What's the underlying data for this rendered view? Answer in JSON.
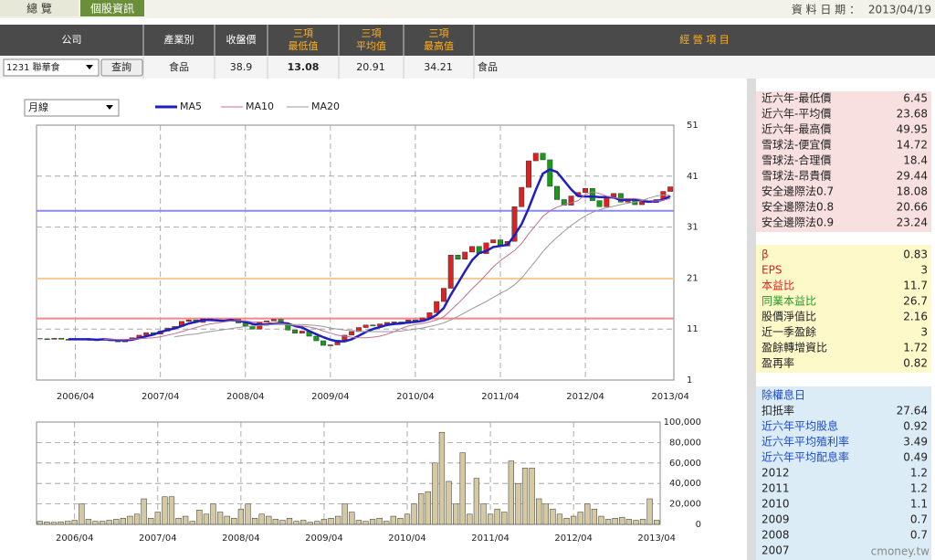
{
  "tabs": [
    "總 覽",
    "個股資訊"
  ],
  "date_label": "資 料 日 期 ：",
  "date": "2013/04/19",
  "table": {
    "header": [
      "公司",
      "產業別",
      "收盤價",
      [
        "三項",
        "最低值"
      ],
      [
        "三項",
        "平均值"
      ],
      [
        "三項",
        "最高值"
      ],
      "經 營 項 目"
    ],
    "row": {
      "company": "1231 聯華食",
      "button": "查詢",
      "industry": "食品",
      "close": 38.9,
      "low": 13.08,
      "avg": 20.91,
      "high": 34.21,
      "business": "食品"
    }
  },
  "period": "月線",
  "chart_data": [
    {
      "type": "candlestick",
      "x": [
        "2005/11",
        "2005/12",
        "2006/01",
        "2006/02",
        "2006/03",
        "2006/04",
        "2006/05",
        "2006/06",
        "2006/07",
        "2006/08",
        "2006/09",
        "2006/10",
        "2006/11",
        "2006/12",
        "2007/01",
        "2007/02",
        "2007/03",
        "2007/04",
        "2007/05",
        "2007/06",
        "2007/07",
        "2007/08",
        "2007/09",
        "2007/10",
        "2007/11",
        "2007/12",
        "2008/01",
        "2008/02",
        "2008/03",
        "2008/04",
        "2008/05",
        "2008/06",
        "2008/07",
        "2008/08",
        "2008/09",
        "2008/10",
        "2008/11",
        "2008/12",
        "2009/01",
        "2009/02",
        "2009/03",
        "2009/04",
        "2009/05",
        "2009/06",
        "2009/07",
        "2009/08",
        "2009/09",
        "2009/10",
        "2009/11",
        "2009/12",
        "2010/01",
        "2010/02",
        "2010/03",
        "2010/04",
        "2010/05",
        "2010/06",
        "2010/07",
        "2010/08",
        "2010/09",
        "2010/10",
        "2010/11",
        "2010/12",
        "2011/01",
        "2011/02",
        "2011/03",
        "2011/04",
        "2011/05",
        "2011/06",
        "2011/07",
        "2011/08",
        "2011/09",
        "2011/10",
        "2011/11",
        "2011/12",
        "2012/01",
        "2012/02",
        "2012/03",
        "2012/04",
        "2012/05",
        "2012/06",
        "2012/07",
        "2012/08",
        "2012/09",
        "2012/10",
        "2012/11",
        "2012/12",
        "2013/01",
        "2013/02",
        "2013/03",
        "2013/04"
      ],
      "close": [
        9.1,
        9.0,
        9.2,
        9.0,
        8.9,
        9.1,
        9.0,
        8.8,
        8.9,
        9.0,
        8.7,
        8.5,
        8.9,
        9.3,
        9.8,
        10.3,
        10.0,
        10.6,
        11.2,
        11.5,
        12.5,
        12.8,
        12.3,
        13.0,
        12.6,
        12.8,
        12.5,
        12.9,
        12.2,
        11.6,
        11.0,
        12.3,
        12.6,
        12.9,
        12.0,
        10.8,
        10.2,
        10.6,
        9.6,
        8.7,
        7.8,
        7.9,
        8.8,
        9.8,
        10.5,
        11.3,
        11.8,
        11.6,
        12.0,
        12.3,
        12.4,
        12.1,
        12.8,
        12.5,
        13.2,
        14.2,
        16.4,
        19.0,
        25.5,
        24.7,
        26.1,
        27.2,
        25.8,
        27.9,
        28.5,
        27.3,
        28.2,
        35.0,
        38.8,
        44.0,
        45.5,
        44.2,
        39.0,
        36.4,
        35.3,
        37.1,
        37.8,
        38.6,
        36.2,
        35.0,
        36.8,
        37.6,
        35.9,
        36.5,
        35.4,
        36.2,
        35.8,
        36.4,
        38.0,
        38.9
      ],
      "up_color": "#e02020",
      "down_color": "#1a9a1a",
      "series": [
        {
          "name": "MA5",
          "color": "#1f1fc0",
          "values": [
            null,
            null,
            null,
            null,
            9.0,
            9.0,
            9.0,
            9.0,
            8.9,
            9.0,
            8.9,
            8.8,
            8.8,
            8.9,
            9.2,
            9.6,
            9.9,
            10.4,
            10.8,
            11.1,
            11.6,
            12.1,
            12.4,
            12.8,
            12.8,
            12.7,
            12.6,
            12.8,
            12.6,
            12.4,
            12.0,
            11.9,
            11.9,
            12.1,
            12.2,
            12.1,
            11.6,
            11.3,
            10.6,
            10.0,
            9.4,
            8.9,
            8.6,
            8.6,
            9.0,
            9.7,
            10.4,
            11.0,
            11.4,
            11.8,
            12.0,
            12.1,
            12.3,
            12.4,
            12.6,
            13.0,
            13.8,
            15.1,
            17.7,
            20.0,
            22.3,
            24.5,
            25.9,
            26.3,
            27.1,
            27.3,
            27.5,
            29.4,
            31.6,
            34.7,
            38.3,
            41.5,
            42.3,
            41.8,
            40.1,
            38.4,
            37.1,
            37.0,
            37.0,
            36.9,
            36.9,
            36.8,
            36.3,
            36.4,
            36.4,
            36.1,
            36.0,
            36.1,
            36.4,
            37.1
          ]
        },
        {
          "name": "MA10",
          "color": "#c07090",
          "values": [
            null,
            null,
            null,
            null,
            null,
            null,
            null,
            null,
            null,
            9.0,
            9.0,
            8.9,
            8.9,
            9.0,
            9.1,
            9.2,
            9.3,
            9.5,
            9.8,
            10.1,
            10.5,
            10.9,
            11.3,
            11.7,
            12.0,
            12.2,
            12.4,
            12.6,
            12.7,
            12.6,
            12.4,
            12.4,
            12.3,
            12.2,
            12.1,
            11.9,
            11.7,
            11.6,
            11.4,
            11.1,
            10.6,
            10.2,
            9.8,
            9.6,
            9.4,
            9.3,
            9.3,
            9.4,
            9.6,
            10.0,
            10.5,
            11.1,
            11.6,
            11.9,
            12.1,
            12.4,
            12.8,
            13.4,
            14.7,
            16.0,
            17.4,
            18.9,
            20.2,
            21.7,
            23.2,
            24.4,
            25.4,
            26.4,
            27.8,
            29.7,
            31.4,
            33.1,
            34.2,
            34.9,
            35.4,
            35.8,
            36.2,
            37.4,
            37.9,
            37.6,
            37.1,
            36.8,
            36.6,
            36.6,
            36.6,
            36.4,
            36.2,
            36.1,
            36.3,
            36.6
          ]
        },
        {
          "name": "MA20",
          "color": "#999999",
          "values": [
            null,
            null,
            null,
            null,
            null,
            null,
            null,
            null,
            null,
            null,
            null,
            null,
            null,
            null,
            null,
            null,
            null,
            null,
            null,
            9.5,
            9.7,
            9.9,
            10.0,
            10.3,
            10.5,
            10.7,
            10.9,
            11.1,
            11.3,
            11.5,
            11.6,
            11.7,
            11.8,
            11.9,
            11.9,
            11.9,
            11.9,
            11.9,
            11.8,
            11.7,
            11.5,
            11.2,
            11.0,
            10.8,
            10.7,
            10.6,
            10.5,
            10.5,
            10.5,
            10.5,
            10.5,
            10.6,
            10.8,
            11.0,
            11.2,
            11.5,
            11.8,
            12.2,
            12.8,
            13.5,
            14.2,
            15.0,
            15.7,
            16.4,
            17.2,
            18.0,
            18.7,
            19.7,
            21.0,
            22.7,
            24.4,
            26.2,
            27.7,
            29.0,
            30.2,
            31.3,
            32.3,
            33.2,
            33.9,
            34.4,
            34.8,
            35.1,
            35.4,
            35.7,
            35.9,
            36.2,
            36.7,
            37.1,
            37.3,
            37.2
          ]
        }
      ],
      "ylim": [
        1,
        51
      ],
      "yticks": [
        1,
        11,
        21,
        31,
        41,
        51
      ],
      "xticks": [
        "2006/04",
        "2007/04",
        "2008/04",
        "2009/04",
        "2010/04",
        "2011/04",
        "2012/04",
        "2013/04"
      ],
      "grid": true
    },
    {
      "type": "bar",
      "color": "#d4c9a0",
      "values": [
        3000,
        2500,
        2000,
        2500,
        3000,
        4000,
        20000,
        5000,
        3000,
        3000,
        4000,
        5000,
        6000,
        8000,
        10000,
        25000,
        6000,
        12000,
        27000,
        27000,
        6000,
        8000,
        3000,
        14000,
        10000,
        20000,
        12000,
        8000,
        6000,
        15000,
        20000,
        6000,
        10000,
        8000,
        5000,
        4000,
        6000,
        3000,
        4000,
        2000,
        3000,
        5000,
        6000,
        8000,
        20000,
        12000,
        4000,
        3000,
        5000,
        6000,
        3000,
        8000,
        6000,
        10000,
        20000,
        30000,
        32000,
        60000,
        90000,
        42000,
        20000,
        70000,
        10000,
        45000,
        20000,
        10000,
        15000,
        12000,
        62000,
        40000,
        55000,
        55000,
        25000,
        20000,
        15000,
        10000,
        6000,
        8000,
        12000,
        20000,
        15000,
        8000,
        5000,
        6000,
        7000,
        5000,
        4000,
        5000,
        25000,
        4000
      ],
      "ylim": [
        0,
        100000
      ],
      "yticks": [
        0,
        {
          "value": 20000,
          "label": "20,000"
        },
        {
          "value": 40000,
          "label": "40,000"
        },
        {
          "value": 60000,
          "label": "60,000"
        },
        {
          "value": 80000,
          "label": "80,000"
        },
        {
          "value": 100000,
          "label": "100,000"
        }
      ],
      "xticks": [
        "2006/04",
        "2007/04",
        "2008/04",
        "2009/04",
        "2010/04",
        "2011/04",
        "2012/04",
        "2013/04"
      ],
      "grid": true
    }
  ],
  "panel": [
    {
      "rows": [
        {
          "label": "近六年-最低價",
          "value": 6.45
        },
        {
          "label": "近六年-平均價",
          "value": 23.68
        },
        {
          "label": "近六年-最高價",
          "value": 49.95
        },
        {
          "label": "雪球法-便宜價",
          "value": 14.72
        },
        {
          "label": "雪球法-合理價",
          "value": 18.4
        },
        {
          "label": "雪球法-昂貴價",
          "value": 29.44
        },
        {
          "label": "安全邊際法0.7",
          "value": 18.08
        },
        {
          "label": "安全邊際法0.8",
          "value": 20.66
        },
        {
          "label": "安全邊際法0.9",
          "value": 23.24
        }
      ]
    },
    {
      "rows": [
        {
          "label": "β",
          "value": 0.83,
          "color": "#e02020"
        },
        {
          "label": "EPS",
          "value": 3,
          "color": "#e02020"
        },
        {
          "label": "本益比",
          "value": 11.7,
          "color": "#e02020"
        },
        {
          "label": "同業本益比",
          "value": 26.7,
          "color": "#2a9a2a"
        },
        {
          "label": "股價淨值比",
          "value": 2.16
        },
        {
          "label": "近一季盈餘",
          "value": 3
        },
        {
          "label": "盈餘轉增資比",
          "value": 1.72
        },
        {
          "label": "盈再率",
          "value": 0.82
        }
      ]
    },
    {
      "rows": [
        {
          "label": "除權息日",
          "color": "#1a4ad0"
        },
        {
          "label": "扣抵率",
          "value": 27.64
        },
        {
          "label": "近六年平均股息",
          "value": 0.92,
          "color": "#1a4ad0"
        },
        {
          "label": "近六年平均殖利率",
          "value": 3.49,
          "color": "#1a4ad0"
        },
        {
          "label": "近六年平均配息率",
          "value": 0.49,
          "color": "#1a4ad0"
        },
        {
          "label": "2012",
          "value": 1.2
        },
        {
          "label": "2011",
          "value": 1.2
        },
        {
          "label": "2010",
          "value": 1.1
        },
        {
          "label": "2009",
          "value": 0.7
        },
        {
          "label": "2008",
          "value": 0.7
        },
        {
          "label": "2007"
        }
      ]
    }
  ],
  "watermark": "cmoney.tw"
}
